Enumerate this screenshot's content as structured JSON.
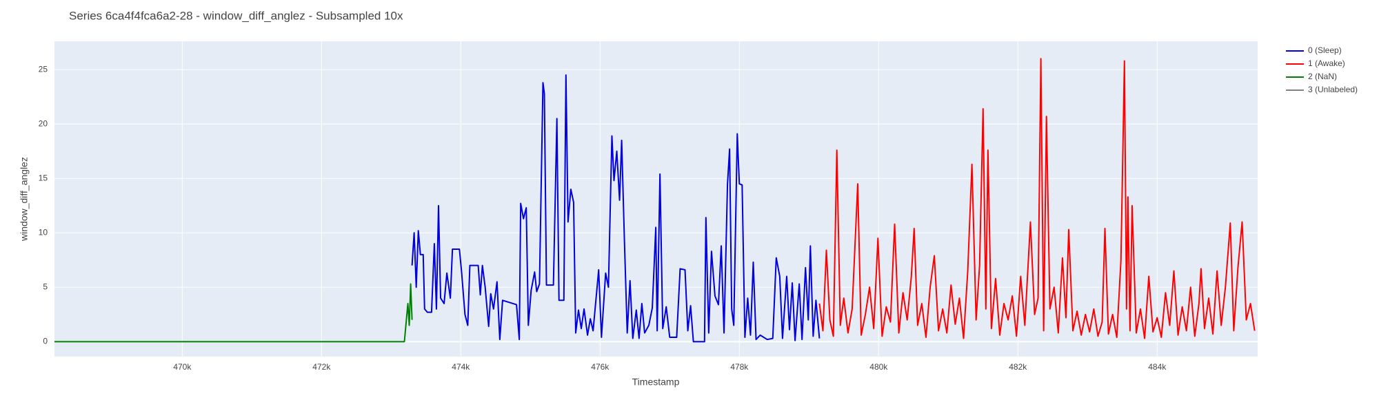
{
  "chart_data": {
    "type": "line",
    "title": "Series 6ca4f4fca6a2-28 - window_diff_anglez - Subsampled 10x",
    "x_label": "Timestamp",
    "y_label": "window_diff_anglez",
    "xlim": [
      468165,
      485443
    ],
    "ylim": [
      -1.37,
      27.6
    ],
    "xticks": [
      {
        "value": 470000,
        "label": "470k"
      },
      {
        "value": 472000,
        "label": "472k"
      },
      {
        "value": 474000,
        "label": "474k"
      },
      {
        "value": 476000,
        "label": "476k"
      },
      {
        "value": 478000,
        "label": "478k"
      },
      {
        "value": 480000,
        "label": "480k"
      },
      {
        "value": 482000,
        "label": "482k"
      },
      {
        "value": 484000,
        "label": "484k"
      }
    ],
    "yticks": [
      0,
      5,
      10,
      15,
      20,
      25
    ],
    "grid": true,
    "legend": "top-right",
    "background": "#e5ecf6",
    "series": [
      {
        "name": "0 (Sleep)",
        "color": "#0000dd",
        "x": [
          473300,
          473330,
          473360,
          473390,
          473420,
          473460,
          473480,
          473520,
          473580,
          473620,
          473650,
          473680,
          473710,
          473760,
          473800,
          473850,
          473880,
          473980,
          474010,
          474060,
          474100,
          474130,
          474250,
          474280,
          474310,
          474350,
          474400,
          474430,
          474470,
          474520,
          474560,
          474600,
          474700,
          474800,
          474840,
          474860,
          474900,
          474940,
          474970,
          475010,
          475060,
          475090,
          475130,
          475180,
          475200,
          475230,
          475330,
          475380,
          475410,
          475480,
          475510,
          475540,
          475580,
          475620,
          475650,
          475690,
          475730,
          475770,
          475820,
          475860,
          475900,
          475940,
          475980,
          476020,
          476080,
          476120,
          476170,
          476200,
          476240,
          476280,
          476310,
          476350,
          476390,
          476430,
          476470,
          476520,
          476560,
          476600,
          476640,
          476700,
          476750,
          476800,
          476820,
          476860,
          476900,
          476950,
          477000,
          477100,
          477150,
          477220,
          477260,
          477300,
          477340,
          477500,
          477520,
          477560,
          477600,
          477650,
          477700,
          477740,
          477780,
          477830,
          477860,
          477890,
          477920,
          477970,
          478000,
          478040,
          478080,
          478120,
          478160,
          478200,
          478240,
          478300,
          478400,
          478480,
          478530,
          478580,
          478620,
          478680,
          478720,
          478760,
          478800,
          478860,
          478900,
          478950,
          478990,
          479020,
          479060,
          479100,
          479150
        ],
        "values": [
          7,
          10,
          5,
          10.2,
          8,
          8,
          3,
          2.7,
          2.7,
          9,
          3,
          12.5,
          4,
          3.5,
          6.3,
          4,
          8.5,
          8.5,
          6.5,
          2.5,
          1.5,
          7,
          7,
          4.3,
          7,
          5,
          1.4,
          4.4,
          3,
          5.5,
          0.2,
          3.8,
          3.6,
          3.4,
          0.2,
          12.7,
          11.3,
          12.3,
          1.5,
          4.7,
          6.4,
          4.6,
          5.3,
          23.8,
          22.8,
          5.2,
          5.2,
          20.5,
          3.8,
          3.8,
          24.5,
          11,
          14,
          12.8,
          0.8,
          2.9,
          1.2,
          3,
          0.6,
          2.1,
          1,
          3.8,
          6.6,
          0.4,
          6.3,
          5,
          18.9,
          14.8,
          17.5,
          13,
          18.5,
          9.2,
          0.8,
          5.6,
          0.3,
          2.9,
          0.3,
          3.5,
          0.8,
          1.5,
          3.1,
          10.5,
          1,
          15.4,
          1.2,
          3.2,
          0.4,
          0.4,
          6.7,
          6.6,
          1,
          3.3,
          0,
          0,
          11.4,
          0.8,
          8.3,
          4.2,
          3.4,
          8.8,
          0.8,
          14.5,
          17.7,
          3,
          1.5,
          19.1,
          14.5,
          14.4,
          0.4,
          4,
          0.6,
          7.3,
          0.2,
          0.6,
          0.2,
          0.3,
          7.7,
          6,
          0.3,
          6,
          1.1,
          5.4,
          0.1,
          5.3,
          0.2,
          6.8,
          2,
          8.8,
          0.5,
          3.8,
          0.3
        ]
      },
      {
        "name": "1 (Awake)",
        "color": "#ff0000",
        "x": [
          479150,
          479200,
          479250,
          479300,
          479350,
          479400,
          479450,
          479500,
          479560,
          479620,
          479700,
          479750,
          479810,
          479870,
          479930,
          479990,
          480050,
          480110,
          480170,
          480230,
          480290,
          480350,
          480410,
          480470,
          480510,
          480560,
          480620,
          480680,
          480740,
          480800,
          480860,
          480920,
          480980,
          481040,
          481100,
          481160,
          481220,
          481280,
          481340,
          481400,
          481450,
          481500,
          481540,
          481570,
          481620,
          481680,
          481740,
          481800,
          481860,
          481920,
          481980,
          482040,
          482100,
          482180,
          482240,
          482290,
          482330,
          482370,
          482410,
          482460,
          482520,
          482580,
          482640,
          482690,
          482730,
          482790,
          482850,
          482910,
          482970,
          483030,
          483090,
          483150,
          483210,
          483250,
          483300,
          483360,
          483420,
          483480,
          483530,
          483560,
          483580,
          483610,
          483640,
          483700,
          483760,
          483820,
          483880,
          483940,
          484000,
          484060,
          484120,
          484180,
          484240,
          484300,
          484360,
          484420,
          484480,
          484540,
          484600,
          484630,
          484680,
          484740,
          484800,
          484860,
          484920,
          484980,
          485050,
          485100,
          485160,
          485220,
          485280,
          485340,
          485400
        ],
        "values": [
          3.5,
          1,
          8.4,
          2,
          0.5,
          17.6,
          1.5,
          4,
          0.8,
          3,
          14.5,
          0.6,
          2.5,
          5,
          1.2,
          9.5,
          0.5,
          3.2,
          1.8,
          10.8,
          0.8,
          4.5,
          2,
          6,
          10.4,
          1.5,
          3.5,
          0.4,
          5,
          7.9,
          1,
          3,
          0.8,
          5.2,
          1.6,
          4,
          0.3,
          6.5,
          16.3,
          2,
          7,
          21.4,
          3,
          17.6,
          1.2,
          5.8,
          0.6,
          3.5,
          2,
          4.2,
          0.5,
          6,
          1.5,
          11,
          2.5,
          4,
          26,
          1,
          20.7,
          3,
          5,
          0.8,
          7.7,
          2.2,
          10.3,
          1,
          2.8,
          0.6,
          2.5,
          0.9,
          3,
          0.5,
          1.8,
          10.4,
          0.7,
          2.5,
          0.4,
          7.5,
          25.8,
          3,
          13.3,
          1,
          12.5,
          0.8,
          3,
          0.3,
          6,
          0.9,
          2.2,
          0.4,
          4.5,
          1.5,
          6.5,
          0.6,
          3.2,
          1,
          5,
          0.5,
          3.5,
          6.7,
          1.2,
          4,
          0.7,
          6.5,
          1.5,
          5,
          10.9,
          1,
          6.8,
          11,
          2,
          3.5,
          1
        ]
      },
      {
        "name": "2 (NaN)",
        "color": "#008000",
        "x": [
          468165,
          473190,
          473240,
          473260,
          473280,
          473300
        ],
        "values": [
          0,
          0,
          3.5,
          1.5,
          5.3,
          2
        ]
      },
      {
        "name": "3 (Unlabeled)",
        "color": "#808080",
        "x": [],
        "values": []
      }
    ]
  }
}
